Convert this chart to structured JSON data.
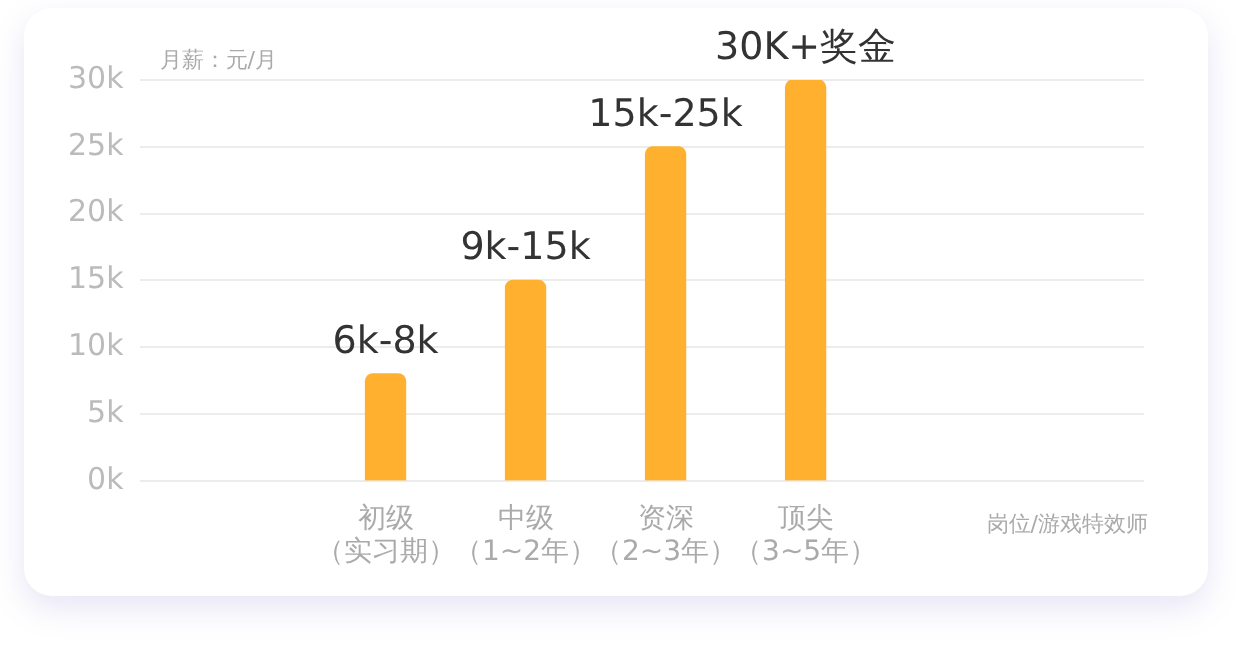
{
  "chart_data": {
    "type": "bar",
    "ylabel": "月薪：元/月",
    "categories": [
      "初级（实习期）",
      "中级（1~2年）",
      "资深（2~3年）",
      "顶尖（3~5年）"
    ],
    "values": [
      8,
      15,
      25,
      30
    ],
    "color": "#ffb02e",
    "annotations": [
      {
        "text": "6k-8k",
        "x": "初级（实习期）",
        "y": 8
      },
      {
        "text": "9k-15k",
        "x": "中级（1~2年）",
        "y": 15
      },
      {
        "text": "15k-25k",
        "x": "资深（2~3年）",
        "y": 25
      },
      {
        "text": "30K+奖金",
        "x": "顶尖（3~5年）",
        "y": 30
      },
      "岗位/游戏特效师"
    ],
    "ylim": [
      0,
      30
    ],
    "yticks": [
      {
        "value": 0,
        "label": "0k"
      },
      {
        "value": 5,
        "label": "5k"
      },
      {
        "value": 10,
        "label": "10k"
      },
      {
        "value": 15,
        "label": "15k"
      },
      {
        "value": 20,
        "label": "20k"
      },
      {
        "value": 25,
        "label": "25k"
      },
      {
        "value": 30,
        "label": "30k"
      }
    ],
    "grid": "y",
    "legend": false
  }
}
